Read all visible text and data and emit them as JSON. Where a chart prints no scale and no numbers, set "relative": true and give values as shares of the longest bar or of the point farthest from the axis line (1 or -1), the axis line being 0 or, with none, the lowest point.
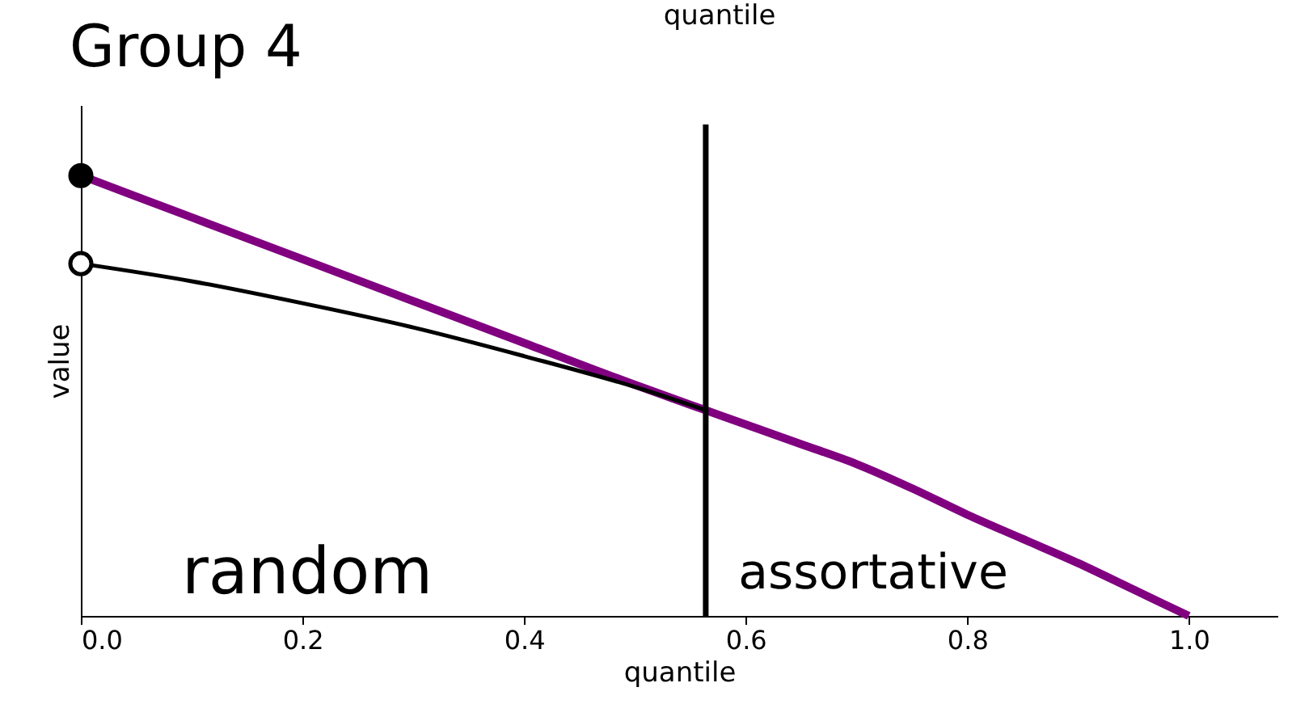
{
  "chart_data": {
    "type": "line",
    "title": "Group 4",
    "xlabel": "quantile",
    "ylabel": "value",
    "relative": true,
    "xlim": [
      0,
      1.08
    ],
    "xticks": [
      {
        "value": 0,
        "label": "0.0"
      },
      {
        "value": 0.2,
        "label": "0.2"
      },
      {
        "value": 0.4,
        "label": "0.4"
      },
      {
        "value": 0.6,
        "label": "0.6"
      },
      {
        "value": 0.8,
        "label": "0.8"
      },
      {
        "value": 1.0,
        "label": "1.0"
      }
    ],
    "series": [
      {
        "color": "#800080",
        "x": [
          0,
          0.1,
          0.2,
          0.3,
          0.4,
          0.5,
          0.564,
          0.65,
          0.7,
          0.75,
          0.8,
          0.85,
          0.9,
          0.95,
          1.0
        ],
        "values": [
          1,
          0.905,
          0.81,
          0.715,
          0.62,
          0.525,
          0.467,
          0.39,
          0.345,
          0.29,
          0.23,
          0.175,
          0.12,
          0.06,
          0
        ]
      },
      {
        "color": "#000000",
        "x": [
          0,
          0.1,
          0.2,
          0.3,
          0.4,
          0.5,
          0.564
        ],
        "values": [
          0.8,
          0.76,
          0.71,
          0.655,
          0.59,
          0.52,
          0.467
        ]
      },
      {
        "type": "scatter",
        "color": "#000000",
        "marker": "circle",
        "x": [
          0
        ],
        "values": [
          1
        ]
      },
      {
        "type": "scatter",
        "color": "#ffffff",
        "marker": "circle",
        "x": [
          0
        ],
        "values": [
          0.8
        ]
      }
    ],
    "ref_lines": [
      {
        "axis": "x",
        "value": 0.564,
        "color": "#000000"
      }
    ],
    "annotations": [
      "random",
      "assortative",
      "quantile"
    ],
    "grid": false
  }
}
